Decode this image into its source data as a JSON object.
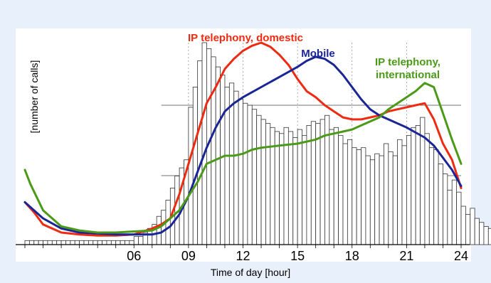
{
  "chart_data": {
    "type": "line",
    "title": "",
    "xlabel": "Time of day [hour]",
    "ylabel": "[number of calls]",
    "x_ticks": [
      "06",
      "09",
      "12",
      "15",
      "18",
      "21",
      "24"
    ],
    "x_tick_hours": [
      6,
      9,
      12,
      15,
      18,
      21,
      24
    ],
    "xlim": [
      0,
      24
    ],
    "ylim": [
      0,
      100
    ],
    "grid": "partial",
    "series": [
      {
        "name": "IP telephony, domestic",
        "color": "#ee2a10",
        "label_lines": [
          "IP telephony, domestic"
        ],
        "points": [
          [
            0,
            21
          ],
          [
            0.5,
            16
          ],
          [
            1,
            10
          ],
          [
            2,
            6
          ],
          [
            3,
            5
          ],
          [
            4,
            4.5
          ],
          [
            5,
            4.5
          ],
          [
            6,
            5
          ],
          [
            6.5,
            6.5
          ],
          [
            7,
            8
          ],
          [
            7.5,
            10
          ],
          [
            8,
            13
          ],
          [
            8.5,
            25
          ],
          [
            9,
            40
          ],
          [
            9.5,
            55
          ],
          [
            10,
            70
          ],
          [
            10.5,
            78
          ],
          [
            11,
            87
          ],
          [
            11.5,
            92
          ],
          [
            12,
            96
          ],
          [
            12.5,
            98.5
          ],
          [
            13,
            100
          ],
          [
            13.5,
            98
          ],
          [
            14,
            94
          ],
          [
            14.5,
            89
          ],
          [
            15,
            82
          ],
          [
            15.5,
            76
          ],
          [
            16,
            73
          ],
          [
            16.5,
            69
          ],
          [
            17,
            66
          ],
          [
            17.5,
            63
          ],
          [
            18,
            62
          ],
          [
            18.5,
            62
          ],
          [
            19,
            63
          ],
          [
            19.5,
            64
          ],
          [
            20,
            66
          ],
          [
            20.5,
            67
          ],
          [
            21,
            68
          ],
          [
            21.5,
            69
          ],
          [
            22,
            70
          ],
          [
            22.5,
            62
          ],
          [
            23,
            50
          ],
          [
            23.5,
            42
          ],
          [
            24,
            28
          ]
        ]
      },
      {
        "name": "Mobile",
        "color": "#1a2596",
        "label_lines": [
          "Mobile"
        ],
        "points": [
          [
            0,
            21
          ],
          [
            1,
            13
          ],
          [
            2,
            8
          ],
          [
            3,
            6
          ],
          [
            4,
            5.5
          ],
          [
            5,
            5
          ],
          [
            6,
            5
          ],
          [
            7,
            5
          ],
          [
            7.5,
            6
          ],
          [
            8,
            9
          ],
          [
            8.5,
            15
          ],
          [
            9,
            24
          ],
          [
            9.5,
            36
          ],
          [
            10,
            48
          ],
          [
            10.5,
            58
          ],
          [
            11,
            66
          ],
          [
            11.5,
            70
          ],
          [
            12,
            73
          ],
          [
            12.5,
            75.5
          ],
          [
            13,
            78
          ],
          [
            14,
            83
          ],
          [
            15,
            88
          ],
          [
            15.5,
            91
          ],
          [
            16,
            93
          ],
          [
            16.5,
            92
          ],
          [
            17,
            89
          ],
          [
            17.5,
            84
          ],
          [
            18,
            78
          ],
          [
            18.5,
            72
          ],
          [
            19,
            67
          ],
          [
            19.5,
            64
          ],
          [
            20,
            62
          ],
          [
            21,
            58
          ],
          [
            22,
            53
          ],
          [
            22.5,
            49
          ],
          [
            23,
            43
          ],
          [
            23.5,
            37
          ],
          [
            24,
            29
          ]
        ]
      },
      {
        "name": "IP telephony, international",
        "color": "#4a9a18",
        "label_lines": [
          "IP telephony,",
          "international"
        ],
        "points": [
          [
            0,
            37
          ],
          [
            0.3,
            30
          ],
          [
            1,
            17
          ],
          [
            2,
            9
          ],
          [
            3,
            7
          ],
          [
            4,
            6
          ],
          [
            5,
            6
          ],
          [
            6,
            6.5
          ],
          [
            7,
            7
          ],
          [
            7.5,
            9
          ],
          [
            8,
            13
          ],
          [
            8.5,
            17
          ],
          [
            9,
            24
          ],
          [
            9.5,
            31
          ],
          [
            10,
            40
          ],
          [
            10.5,
            42
          ],
          [
            11,
            44
          ],
          [
            11.5,
            44
          ],
          [
            12,
            45
          ],
          [
            12.5,
            47
          ],
          [
            13,
            48
          ],
          [
            14,
            49
          ],
          [
            15,
            50
          ],
          [
            16,
            52
          ],
          [
            16.5,
            54
          ],
          [
            17,
            55
          ],
          [
            17.5,
            56
          ],
          [
            18,
            57
          ],
          [
            18.5,
            59
          ],
          [
            19,
            61
          ],
          [
            19.5,
            63
          ],
          [
            20,
            67
          ],
          [
            20.5,
            70
          ],
          [
            21,
            73
          ],
          [
            21.5,
            76
          ],
          [
            22,
            80
          ],
          [
            22.5,
            78
          ],
          [
            23,
            65
          ],
          [
            23.5,
            52
          ],
          [
            24,
            40
          ]
        ]
      }
    ],
    "histogram": {
      "name": "",
      "color": "#000000",
      "bin_width_hours": 0.25,
      "values": [
        2,
        2,
        2,
        2,
        2,
        2,
        2,
        2,
        2,
        2,
        2,
        2,
        2,
        2,
        2,
        2,
        2,
        2,
        2,
        2,
        2,
        2,
        2,
        2,
        4,
        4,
        6,
        8,
        10,
        14,
        17,
        22,
        28,
        34,
        38,
        42,
        68,
        78,
        91,
        100,
        97,
        93,
        88,
        84,
        78,
        80,
        76,
        72,
        70,
        69,
        67,
        64,
        62,
        60,
        58,
        56,
        55,
        58,
        56,
        53,
        57,
        54,
        59,
        61,
        60,
        62,
        64,
        57,
        58,
        54,
        50,
        52,
        48,
        47,
        48,
        44,
        42,
        45,
        44,
        50,
        46,
        44,
        52,
        49,
        54,
        58,
        59,
        63,
        55,
        48,
        47,
        40,
        35,
        27,
        32,
        26,
        19,
        15,
        18,
        13,
        11,
        9,
        8,
        8,
        7,
        6,
        5,
        4
      ]
    }
  }
}
